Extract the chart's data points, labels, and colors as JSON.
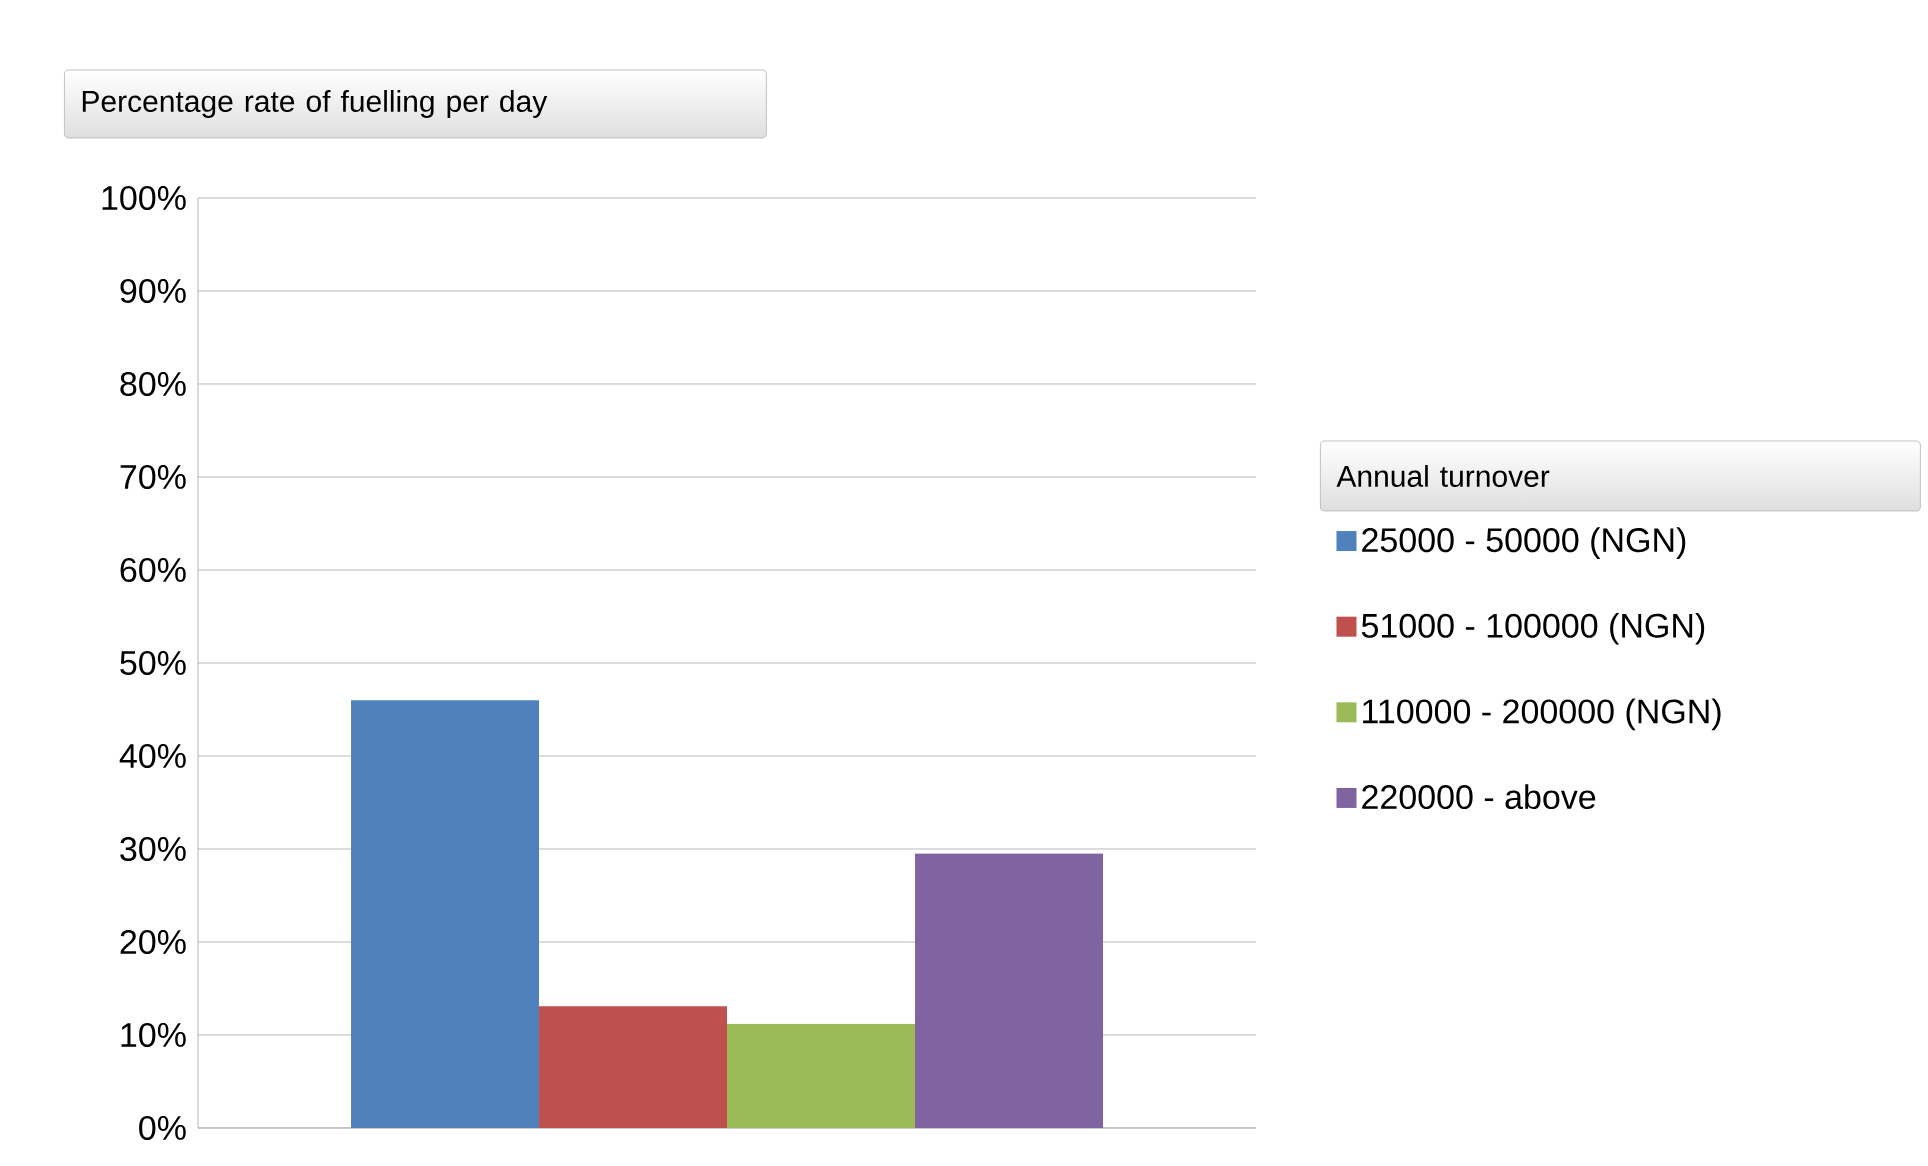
{
  "chart_data": {
    "type": "bar",
    "title": "Percentage rate of fuelling per day",
    "legend_title": "Annual turnover",
    "categories": [
      null
    ],
    "series": [
      {
        "name": "25000 - 50000 (NGN)",
        "color": "#4f81bd",
        "values": [
          46
        ]
      },
      {
        "name": "51000 - 100000 (NGN)",
        "color": "#c0504d",
        "values": [
          13.1
        ]
      },
      {
        "name": "110000 - 200000 (NGN)",
        "color": "#9bbb59",
        "values": [
          11.2
        ]
      },
      {
        "name": "220000 - above",
        "color": "#8064a2",
        "values": [
          29.5
        ]
      }
    ],
    "ylim": [
      0,
      100
    ],
    "yticks": [
      {
        "value": 0,
        "label": "0%"
      },
      {
        "value": 10,
        "label": "10%"
      },
      {
        "value": 20,
        "label": "20%"
      },
      {
        "value": 30,
        "label": "30%"
      },
      {
        "value": 40,
        "label": "40%"
      },
      {
        "value": 50,
        "label": "50%"
      },
      {
        "value": 60,
        "label": "60%"
      },
      {
        "value": 70,
        "label": "70%"
      },
      {
        "value": 80,
        "label": "80%"
      },
      {
        "value": 90,
        "label": "90%"
      },
      {
        "value": 100,
        "label": "100%"
      }
    ],
    "grid": "y",
    "legend": "right",
    "tick_labels": "y"
  }
}
